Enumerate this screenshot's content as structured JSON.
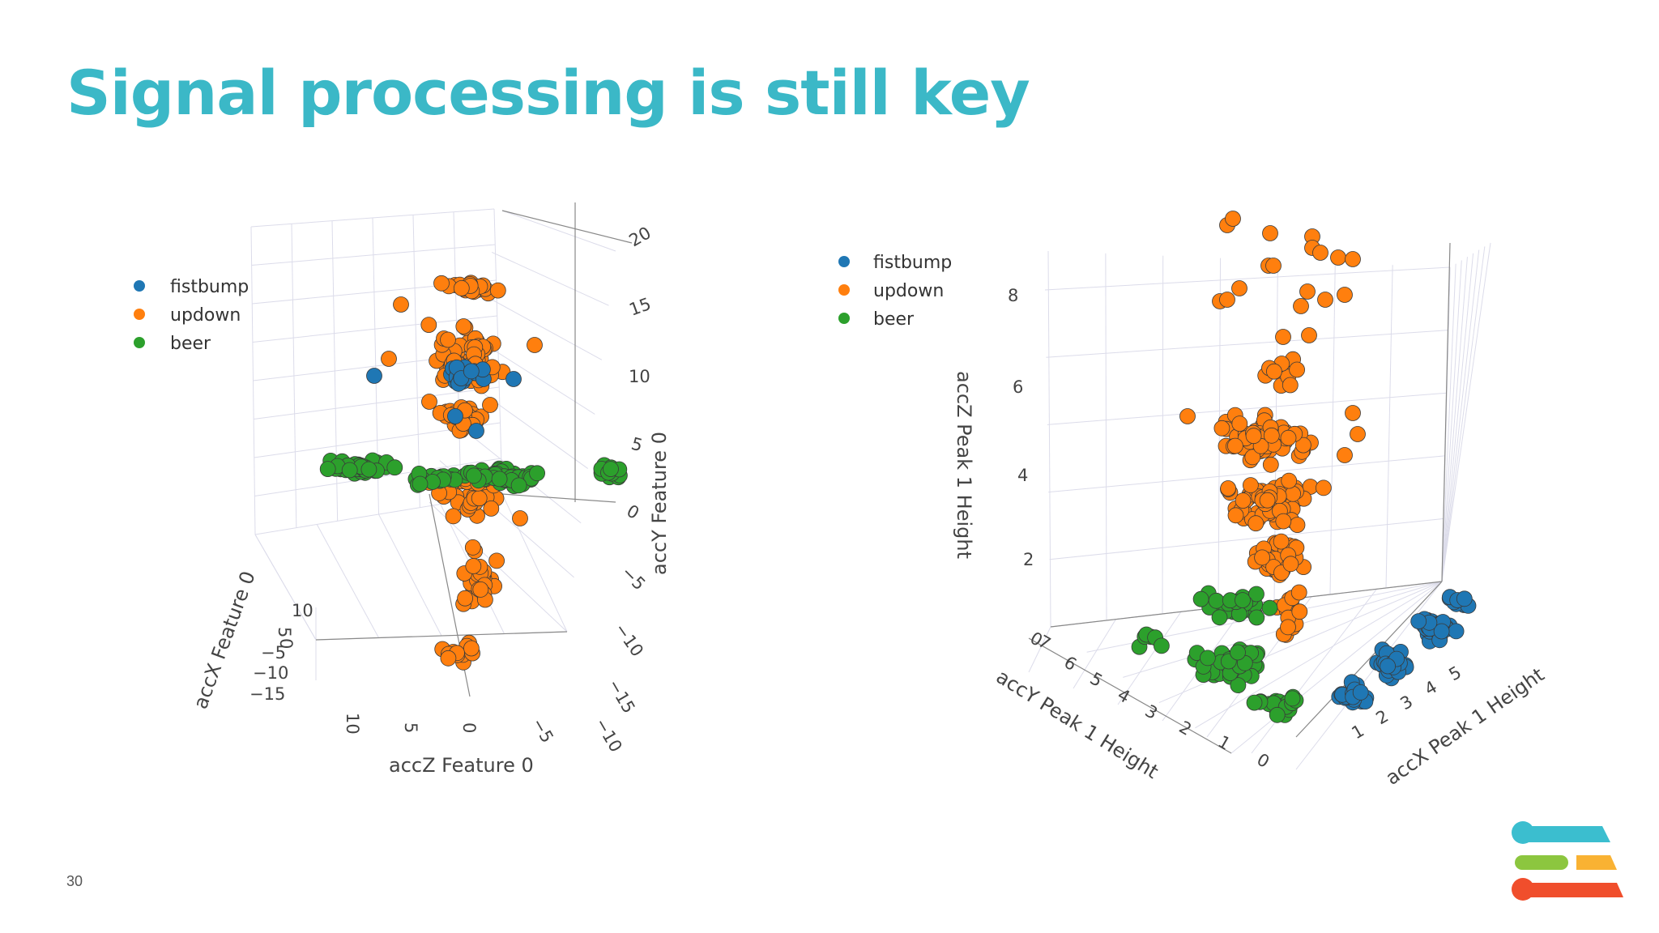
{
  "slide": {
    "title": "Signal processing is still key",
    "page_number": "30"
  },
  "colors": {
    "fistbump": "#1f77b4",
    "updown": "#ff7f0e",
    "beer": "#2ca02c",
    "title": "#3bb8c7",
    "logo_teal": "#3bbecf",
    "logo_green": "#8cc63f",
    "logo_yellow": "#f9b233",
    "logo_red": "#f04e2c"
  },
  "chart_data": [
    {
      "type": "scatter",
      "dimensions": "3d",
      "xlabel": "accX Feature 0",
      "ylabel": "accY Feature 0",
      "zlabel": "accZ Feature 0",
      "x_ticks": [
        "10",
        "5",
        "0",
        "−5",
        "−10",
        "−15"
      ],
      "y_ticks": [
        "20",
        "15",
        "10",
        "5",
        "0",
        "−5",
        "−10",
        "−15"
      ],
      "z_ticks": [
        "10",
        "5",
        "0",
        "−5",
        "−10"
      ],
      "legend": [
        "fistbump",
        "updown",
        "beer"
      ],
      "legend_position": "top-left",
      "series": [
        {
          "name": "fistbump",
          "approx_points": [
            {
              "x": 0,
              "y": 10,
              "z": 0
            },
            {
              "x": 0,
              "y": 9,
              "z": 2
            },
            {
              "x": 0,
              "y": 9,
              "z": -2
            },
            {
              "x": 0,
              "y": 7,
              "z": 0
            },
            {
              "x": 0,
              "y": 5,
              "z": 0
            }
          ]
        },
        {
          "name": "updown",
          "approx_points": [
            {
              "x": 0,
              "y": 20,
              "z": 0
            },
            {
              "x": 0,
              "y": 12,
              "z": 0
            },
            {
              "x": 0,
              "y": 5,
              "z": 0
            },
            {
              "x": 0,
              "y": -3,
              "z": 0
            },
            {
              "x": 0,
              "y": -8,
              "z": 0
            }
          ]
        },
        {
          "name": "beer",
          "approx_points": [
            {
              "x": 0,
              "y": 2,
              "z": 10
            },
            {
              "x": 0,
              "y": 2,
              "z": 0
            },
            {
              "x": 0,
              "y": 2,
              "z": -10
            }
          ]
        }
      ]
    },
    {
      "type": "scatter",
      "dimensions": "3d",
      "xlabel": "accX Peak 1 Height",
      "ylabel": "accY Peak 1 Height",
      "zlabel": "accZ Peak 1 Height",
      "x_ticks": [
        "0",
        "1",
        "2",
        "3",
        "4",
        "5"
      ],
      "y_ticks": [
        "0",
        "1",
        "2",
        "3",
        "4",
        "5",
        "6",
        "7"
      ],
      "z_ticks": [
        "0",
        "2",
        "4",
        "6",
        "8"
      ],
      "legend": [
        "fistbump",
        "updown",
        "beer"
      ],
      "legend_position": "top-left",
      "series": [
        {
          "name": "fistbump",
          "approx_points": [
            {
              "x": 4,
              "y": 0.5,
              "z": 0.5
            },
            {
              "x": 3,
              "y": 1,
              "z": 0.5
            },
            {
              "x": 2,
              "y": 1.5,
              "z": 0.5
            }
          ]
        },
        {
          "name": "updown",
          "approx_points": [
            {
              "x": 1,
              "y": 3,
              "z": 8.5
            },
            {
              "x": 1,
              "y": 3,
              "z": 6
            },
            {
              "x": 1,
              "y": 3,
              "z": 4
            },
            {
              "x": 1,
              "y": 3,
              "z": 2
            }
          ]
        },
        {
          "name": "beer",
          "approx_points": [
            {
              "x": 1,
              "y": 4,
              "z": 1
            },
            {
              "x": 0.5,
              "y": 3,
              "z": 0.5
            },
            {
              "x": 1,
              "y": 2,
              "z": 0.8
            }
          ]
        }
      ]
    }
  ]
}
